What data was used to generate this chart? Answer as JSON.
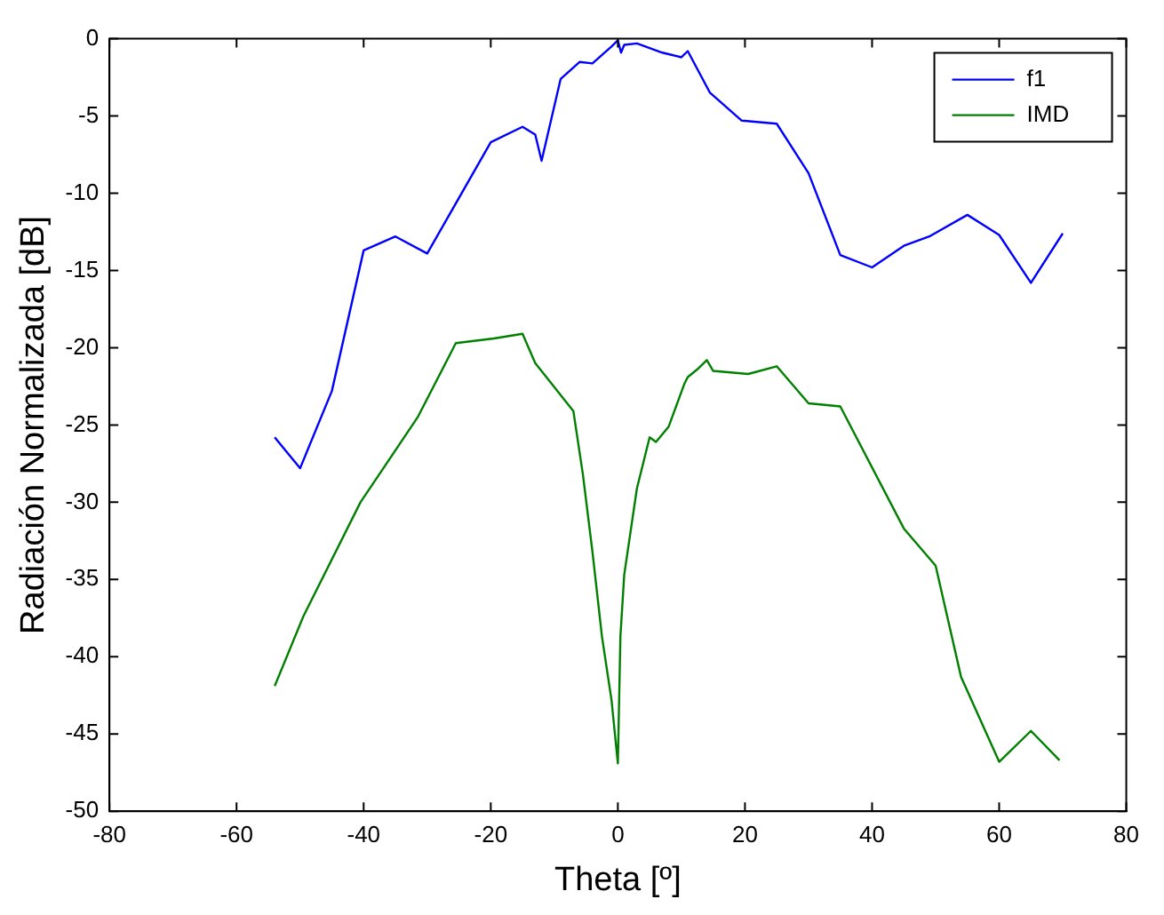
{
  "chart_data": {
    "type": "line",
    "xlabel": "Theta [º]",
    "ylabel": "Radiación Normalizada [dB]",
    "xlim": [
      -80,
      80
    ],
    "xticks": [
      -80,
      -60,
      -40,
      -20,
      0,
      20,
      40,
      60,
      80
    ],
    "ylim": [
      -50,
      0
    ],
    "yticks": [
      -50,
      -45,
      -40,
      -35,
      -30,
      -25,
      -20,
      -15,
      -10,
      -5,
      0
    ],
    "grid": false,
    "legend": "top right",
    "marker": "none",
    "line_style": "solid",
    "series": [
      {
        "name": "f1",
        "color": "#0000ff",
        "x": [
          -54,
          -50,
          -45,
          -40,
          -35,
          -30,
          -20,
          -15,
          -13,
          -12,
          -9,
          -6,
          -4,
          -1,
          0,
          0.5,
          1,
          3,
          7,
          10,
          11,
          14.5,
          19.5,
          25,
          30,
          35,
          40,
          45,
          49,
          55,
          60,
          65,
          70
        ],
        "values": [
          -25.8,
          -27.8,
          -22.8,
          -13.7,
          -12.8,
          -13.9,
          -6.7,
          -5.7,
          -6.2,
          -7.9,
          -2.6,
          -1.5,
          -1.6,
          -0.5,
          -0.1,
          -0.9,
          -0.4,
          -0.3,
          -0.9,
          -1.2,
          -0.8,
          -3.5,
          -5.3,
          -5.5,
          -8.7,
          -14,
          -14.8,
          -13.4,
          -12.8,
          -11.4,
          -12.7,
          -15.8,
          -12.6
        ]
      },
      {
        "name": "IMD",
        "color": "#008000",
        "x": [
          -54,
          -49.5,
          -40.5,
          -31.5,
          -25.5,
          -19.5,
          -15,
          -13,
          -9.5,
          -7,
          -5.5,
          -4,
          -2.5,
          -1,
          0,
          0.4,
          1,
          3,
          5,
          6,
          8,
          10.5,
          11,
          12.5,
          14,
          15,
          20.5,
          25,
          30,
          35,
          45,
          50,
          54,
          60,
          65,
          69.5
        ],
        "values": [
          -41.9,
          -37.4,
          -30,
          -24.5,
          -19.7,
          -19.4,
          -19.1,
          -21,
          -22.8,
          -24.1,
          -28.2,
          -33.2,
          -38.7,
          -42.8,
          -46.9,
          -38.7,
          -34.7,
          -29.1,
          -25.8,
          -26.1,
          -25.1,
          -22.3,
          -21.9,
          -21.4,
          -20.8,
          -21.5,
          -21.7,
          -21.2,
          -23.6,
          -23.8,
          -31.7,
          -34.1,
          -41.3,
          -46.8,
          -44.8,
          -46.7
        ]
      }
    ]
  }
}
